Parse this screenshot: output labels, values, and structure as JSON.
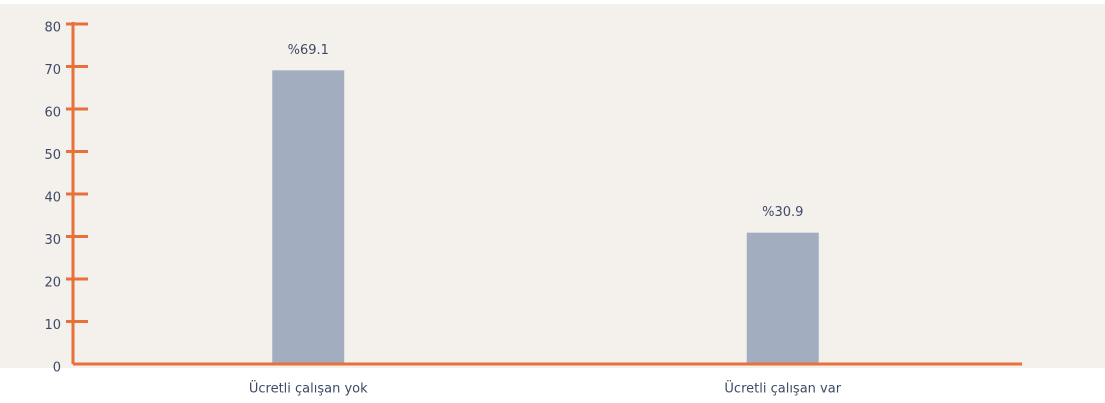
{
  "chart_data": {
    "type": "bar",
    "categories": [
      "Ücretli çalışan yok",
      "Ücretli çalışan var"
    ],
    "values": [
      69.1,
      30.9
    ],
    "value_labels": [
      "%69.1",
      "%30.9"
    ],
    "color": "#a3adc0",
    "axis_color": "#e8703a",
    "ylim": [
      0,
      80
    ],
    "yticks": [
      0,
      10,
      20,
      30,
      40,
      50,
      60,
      70,
      80
    ]
  }
}
